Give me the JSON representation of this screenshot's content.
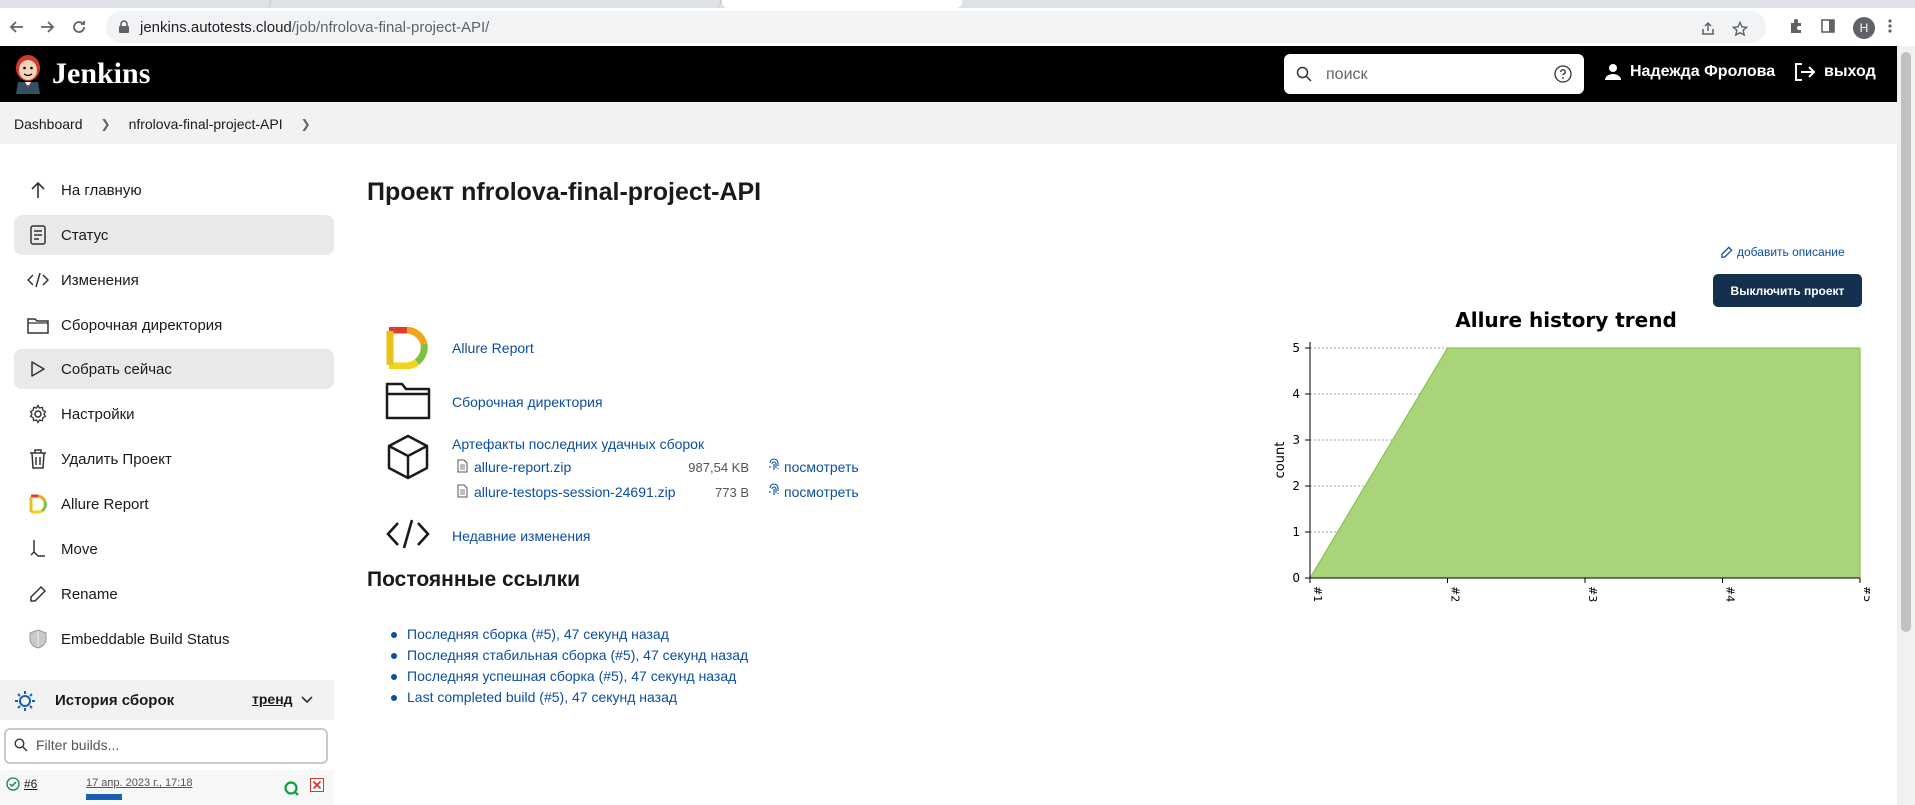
{
  "browser": {
    "url_host": "jenkins.autotests.cloud",
    "url_path": "/job/nfrolova-final-project-API/",
    "profile_initial": "Н"
  },
  "header": {
    "logo_text": "Jenkins",
    "search_placeholder": "поиск",
    "user_name": "Надежда Фролова",
    "logout_label": "выход"
  },
  "breadcrumb": [
    "Dashboard",
    "nfrolova-final-project-API"
  ],
  "sidebar": {
    "items": [
      {
        "label": "На главную",
        "icon": "arrow-up-icon"
      },
      {
        "label": "Статус",
        "icon": "document-icon"
      },
      {
        "label": "Изменения",
        "icon": "code-icon"
      },
      {
        "label": "Сборочная директория",
        "icon": "folder-icon"
      },
      {
        "label": "Собрать сейчас",
        "icon": "play-icon"
      },
      {
        "label": "Настройки",
        "icon": "gear-icon"
      },
      {
        "label": "Удалить Проект",
        "icon": "trash-icon"
      },
      {
        "label": "Allure Report",
        "icon": "allure-icon"
      },
      {
        "label": "Move",
        "icon": "move-icon"
      },
      {
        "label": "Rename",
        "icon": "pencil-icon"
      },
      {
        "label": "Embeddable Build Status",
        "icon": "shield-icon"
      }
    ],
    "history": {
      "title": "История сборок",
      "trend_label": "тренд",
      "filter_placeholder": "Filter builds...",
      "build": {
        "number": "#6",
        "date": "17 апр. 2023 г., 17:18"
      }
    }
  },
  "main": {
    "title": "Проект nfrolova-final-project-API",
    "add_description": "добавить описание",
    "disable_button": "Выключить проект",
    "links": {
      "allure_report": "Allure Report",
      "workspace": "Сборочная директория",
      "artifacts": "Артефакты последних удачных сборок",
      "recent_changes": "Недавние изменения"
    },
    "artifacts": [
      {
        "name": "allure-report.zip",
        "size": "987,54 KB",
        "view": "посмотреть"
      },
      {
        "name": "allure-testops-session-24691.zip",
        "size": "773 B",
        "view": "посмотреть"
      }
    ],
    "permalinks_title": "Постоянные ссылки",
    "permalinks": [
      "Последняя сборка (#5), 47 секунд назад",
      "Последняя стабильная сборка (#5), 47 секунд назад",
      "Последняя успешная сборка (#5), 47 секунд назад",
      "Last completed build (#5), 47 секунд назад"
    ]
  },
  "colors": {
    "header_bg": "#000000",
    "link": "#0b4ea2",
    "button_bg": "#13304f",
    "chart_fill": "#a9d47a",
    "chart_stroke": "#7cc142"
  },
  "chart_data": {
    "type": "area",
    "title": "Allure history trend",
    "ylabel": "count",
    "xlabel": "",
    "categories": [
      "#1",
      "#2",
      "#3",
      "#4",
      "#5"
    ],
    "values": [
      0,
      5,
      5,
      5,
      5
    ],
    "ylim": [
      0,
      5
    ],
    "yticks": [
      0,
      1,
      2,
      3,
      4,
      5
    ],
    "grid": true
  }
}
